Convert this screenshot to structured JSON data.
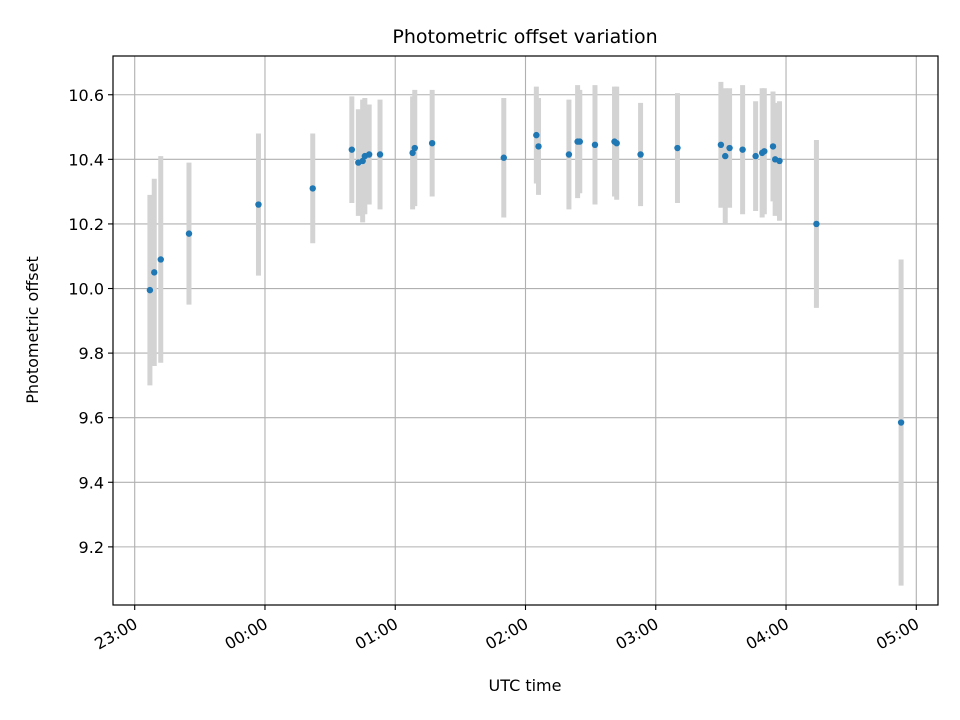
{
  "chart_data": {
    "type": "scatter",
    "title": "Photometric offset variation",
    "xlabel": "UTC time",
    "ylabel": "Photometric offset",
    "x_ticks": [
      "23:00",
      "00:00",
      "01:00",
      "02:00",
      "03:00",
      "04:00",
      "05:00"
    ],
    "y_ticks": [
      "9.2",
      "9.4",
      "9.6",
      "9.8",
      "10.0",
      "10.2",
      "10.4",
      "10.6"
    ],
    "xlim": [
      "22:50",
      "05:10"
    ],
    "ylim": [
      9.02,
      10.72
    ],
    "grid": true,
    "marker_color": "#1f77b4",
    "errorbar_color": "#d3d3d3",
    "series": [
      {
        "points": [
          {
            "x": "23:07",
            "y": 9.995,
            "err": 0.295
          },
          {
            "x": "23:09",
            "y": 10.05,
            "err": 0.29
          },
          {
            "x": "23:12",
            "y": 10.09,
            "err": 0.32
          },
          {
            "x": "23:25",
            "y": 10.17,
            "err": 0.22
          },
          {
            "x": "23:57",
            "y": 10.26,
            "err": 0.22
          },
          {
            "x": "00:22",
            "y": 10.31,
            "err": 0.17
          },
          {
            "x": "00:40",
            "y": 10.43,
            "err": 0.165
          },
          {
            "x": "00:43",
            "y": 10.39,
            "err": 0.165
          },
          {
            "x": "00:45",
            "y": 10.395,
            "err": 0.19
          },
          {
            "x": "00:46",
            "y": 10.41,
            "err": 0.18
          },
          {
            "x": "00:48",
            "y": 10.415,
            "err": 0.155
          },
          {
            "x": "00:53",
            "y": 10.415,
            "err": 0.17
          },
          {
            "x": "01:08",
            "y": 10.42,
            "err": 0.175
          },
          {
            "x": "01:09",
            "y": 10.435,
            "err": 0.18
          },
          {
            "x": "01:17",
            "y": 10.45,
            "err": 0.165
          },
          {
            "x": "01:50",
            "y": 10.405,
            "err": 0.185
          },
          {
            "x": "02:05",
            "y": 10.475,
            "err": 0.15
          },
          {
            "x": "02:06",
            "y": 10.44,
            "err": 0.15
          },
          {
            "x": "02:20",
            "y": 10.415,
            "err": 0.17
          },
          {
            "x": "02:24",
            "y": 10.455,
            "err": 0.175
          },
          {
            "x": "02:25",
            "y": 10.455,
            "err": 0.16
          },
          {
            "x": "02:32",
            "y": 10.445,
            "err": 0.185
          },
          {
            "x": "02:41",
            "y": 10.455,
            "err": 0.17
          },
          {
            "x": "02:42",
            "y": 10.45,
            "err": 0.175
          },
          {
            "x": "02:53",
            "y": 10.415,
            "err": 0.16
          },
          {
            "x": "03:10",
            "y": 10.435,
            "err": 0.17
          },
          {
            "x": "03:30",
            "y": 10.445,
            "err": 0.195
          },
          {
            "x": "03:32",
            "y": 10.41,
            "err": 0.21
          },
          {
            "x": "03:34",
            "y": 10.435,
            "err": 0.185
          },
          {
            "x": "03:40",
            "y": 10.43,
            "err": 0.2
          },
          {
            "x": "03:46",
            "y": 10.41,
            "err": 0.17
          },
          {
            "x": "03:49",
            "y": 10.42,
            "err": 0.2
          },
          {
            "x": "03:50",
            "y": 10.425,
            "err": 0.195
          },
          {
            "x": "03:54",
            "y": 10.44,
            "err": 0.17
          },
          {
            "x": "03:55",
            "y": 10.4,
            "err": 0.175
          },
          {
            "x": "03:57",
            "y": 10.395,
            "err": 0.185
          },
          {
            "x": "04:14",
            "y": 10.2,
            "err": 0.26
          },
          {
            "x": "04:53",
            "y": 9.585,
            "err": 0.505
          }
        ]
      }
    ]
  }
}
